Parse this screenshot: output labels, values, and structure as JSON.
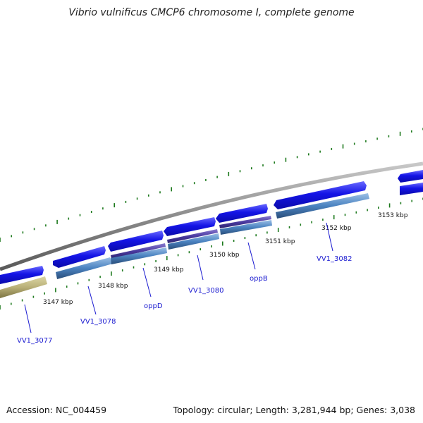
{
  "title": "Vibrio vulnificus CMCP6 chromosome I, complete genome",
  "footer": {
    "accession": "Accession: NC_004459",
    "summary": "Topology: circular; Length: 3,281,944 bp; Genes: 3,038"
  },
  "scale_labels": [
    "3147 kbp",
    "3148 kbp",
    "3149 kbp",
    "3150 kbp",
    "3151 kbp",
    "3152 kbp",
    "3153 kbp"
  ],
  "gene_labels": [
    "VV1_3077",
    "VV1_3078",
    "oppD",
    "VV1_3080",
    "oppB",
    "VV1_3082"
  ],
  "colors": {
    "backbone": "#8c8c8c",
    "cds_arrow": "#1010e8",
    "cds_track": "#4a82c0",
    "gene_purple": "#4a3aa0",
    "gene_olive": "#b9b078",
    "tick": "#1e7a1e",
    "label_text": "#1a1ad0"
  }
}
